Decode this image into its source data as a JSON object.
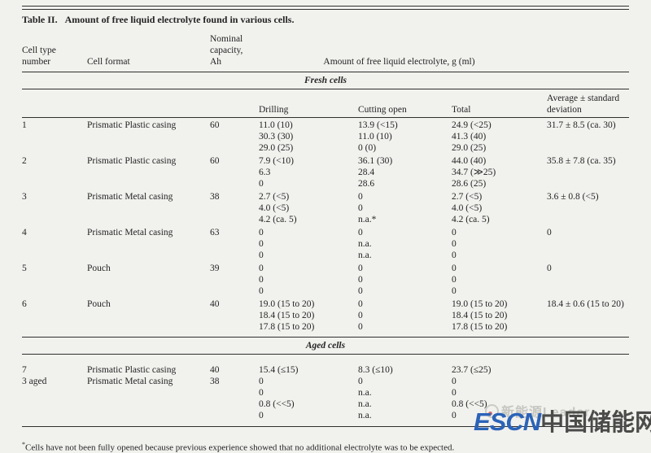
{
  "page": {
    "background": "#f1f1ee",
    "rule_color": "#2f2f2f",
    "text_color": "#242424"
  },
  "title": {
    "label": "Table II.",
    "text": "Amount of free liquid electrolyte found in various cells."
  },
  "header": {
    "col1": [
      "Cell type",
      "number"
    ],
    "col2": "Cell format",
    "col3": [
      "Nominal",
      "capacity,",
      "Ah"
    ],
    "span": "Amount of free liquid electrolyte, g (ml)"
  },
  "subheader": {
    "drilling": "Drilling",
    "cutting": "Cutting open",
    "total": "Total",
    "average": [
      "Average ± standard",
      "deviation"
    ]
  },
  "chart_data": {
    "type": "table",
    "title": "Table II. Amount of free liquid electrolyte found in various cells.",
    "columns": [
      "Cell type number",
      "Cell format",
      "Nominal capacity, Ah",
      "Drilling",
      "Cutting open",
      "Total",
      "Average ± standard deviation"
    ]
  },
  "sections": [
    {
      "name": "Fresh cells",
      "rows": [
        {
          "number": "1",
          "format": "Prismatic Plastic casing",
          "capacity": "60",
          "drilling": [
            "11.0 (10)",
            "30.3 (30)",
            "29.0 (25)"
          ],
          "cutting": [
            "13.9 (<15)",
            "11.0 (10)",
            "0 (0)"
          ],
          "total": [
            "24.9 (<25)",
            "41.3 (40)",
            "29.0 (25)"
          ],
          "average": "31.7 ± 8.5 (ca. 30)"
        },
        {
          "number": "2",
          "format": "Prismatic Plastic casing",
          "capacity": "60",
          "drilling": [
            "7.9 (<10)",
            "6.3",
            "0"
          ],
          "cutting": [
            "36.1 (30)",
            "28.4",
            "28.6"
          ],
          "total": [
            "44.0 (40)",
            "34.7 (≫25)",
            "28.6 (25)"
          ],
          "average": "35.8 ± 7.8 (ca. 35)"
        },
        {
          "number": "3",
          "format": "Prismatic Metal casing",
          "capacity": "38",
          "drilling": [
            "2.7 (<5)",
            "4.0 (<5)",
            "4.2 (ca. 5)"
          ],
          "cutting": [
            "0",
            "0",
            "n.a.*"
          ],
          "total": [
            "2.7 (<5)",
            "4.0 (<5)",
            "4.2 (ca. 5)"
          ],
          "average": "3.6 ± 0.8 (<5)"
        },
        {
          "number": "4",
          "format": "Prismatic Metal casing",
          "capacity": "63",
          "drilling": [
            "0",
            "0",
            "0"
          ],
          "cutting": [
            "0",
            "n.a.",
            "n.a."
          ],
          "total": [
            "0",
            "0",
            "0"
          ],
          "average": "0"
        },
        {
          "number": "5",
          "format": "Pouch",
          "capacity": "39",
          "drilling": [
            "0",
            "0",
            "0"
          ],
          "cutting": [
            "0",
            "0",
            "0"
          ],
          "total": [
            "0",
            "0",
            "0"
          ],
          "average": "0"
        },
        {
          "number": "6",
          "format": "Pouch",
          "capacity": "40",
          "drilling": [
            "19.0 (15 to 20)",
            "18.4 (15 to 20)",
            "17.8 (15 to 20)"
          ],
          "cutting": [
            "0",
            "0",
            "0"
          ],
          "total": [
            "19.0 (15 to 20)",
            "18.4 (15 to 20)",
            "17.8 (15 to 20)"
          ],
          "average": "18.4 ± 0.6 (15 to 20)"
        }
      ]
    },
    {
      "name": "Aged cells",
      "rows": [
        {
          "number": "7",
          "format": "Prismatic Plastic casing",
          "capacity": "40",
          "drilling": [
            "15.4 (≤15)"
          ],
          "cutting": [
            "8.3 (≤10)"
          ],
          "total": [
            "23.7 (≤25)"
          ],
          "average": ""
        },
        {
          "number": "3 aged",
          "format": "Prismatic Metal casing",
          "capacity": "38",
          "drilling": [
            "0",
            "0",
            "0.8 (<<5)",
            "0"
          ],
          "cutting": [
            "0",
            "n.a.",
            "n.a.",
            "n.a."
          ],
          "total": [
            "0",
            "0",
            "0.8 (<<5)",
            "0"
          ],
          "average": ""
        }
      ]
    }
  ],
  "footnote": {
    "marker": "*",
    "text": "Cells have not been fully opened because previous experience showed that no additional electrolyte was to be expected."
  },
  "watermark": {
    "light_text": "新能源Leader",
    "escn": "ESCN",
    "cn": "中国储能网",
    "escn_color": "#2b63b8",
    "cn_color": "#4b4b49"
  }
}
